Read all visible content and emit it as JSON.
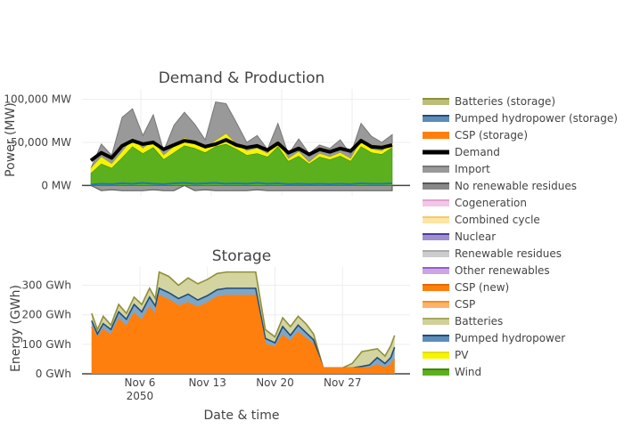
{
  "chart_data": [
    {
      "type": "area",
      "title": "Demand & Production",
      "ylabel": "Power (MW)",
      "yticks": [
        "100,000 MW",
        "50,000 MW",
        "0 MW"
      ],
      "ytick_values": [
        100000,
        50000,
        0
      ],
      "ylim": [
        -12000,
        112000
      ],
      "series": [
        {
          "name": "Demand",
          "type": "line",
          "color": "#000000",
          "x": [
            0,
            1,
            2,
            3,
            4,
            5,
            6,
            7,
            8,
            9,
            10,
            11,
            12,
            13,
            14,
            15,
            16,
            17,
            18,
            19,
            20,
            21,
            22,
            23,
            24,
            25,
            26,
            27,
            28,
            29
          ],
          "values": [
            29000,
            38000,
            32000,
            46000,
            52000,
            48000,
            50000,
            42000,
            47000,
            52000,
            50000,
            45000,
            48000,
            53000,
            47000,
            44000,
            46000,
            41000,
            49000,
            38000,
            43000,
            36000,
            42000,
            39000,
            43000,
            40000,
            52000,
            45000,
            44000,
            47000
          ]
        },
        {
          "name": "Wind",
          "type": "area",
          "color": "#5cb01e",
          "values": [
            14000,
            25000,
            20000,
            32000,
            45000,
            37000,
            44000,
            30000,
            38000,
            46000,
            43000,
            38000,
            45000,
            48000,
            42000,
            35000,
            37000,
            33000,
            45000,
            28000,
            34000,
            25000,
            33000,
            30000,
            34000,
            28000,
            45000,
            38000,
            36000,
            44000
          ]
        },
        {
          "name": "PV",
          "type": "area",
          "color": "#f5f500",
          "values": [
            6000,
            8000,
            5000,
            7000,
            9000,
            6000,
            8000,
            5000,
            7000,
            9000,
            8000,
            5000,
            7000,
            12000,
            6000,
            5000,
            6000,
            4000,
            7000,
            3000,
            5000,
            2000,
            4000,
            3000,
            4000,
            3000,
            7000,
            4000,
            4000,
            5000
          ]
        },
        {
          "name": "Import",
          "type": "area",
          "color": "#999999",
          "values": [
            0,
            15000,
            10000,
            40000,
            35000,
            15000,
            30000,
            5000,
            25000,
            30000,
            20000,
            10000,
            45000,
            35000,
            25000,
            10000,
            15000,
            5000,
            20000,
            5000,
            15000,
            10000,
            10000,
            10000,
            15000,
            5000,
            20000,
            15000,
            10000,
            10000
          ]
        },
        {
          "name": "Pumped hydropower",
          "type": "line",
          "color": "#1f77b4",
          "values": [
            1000,
            2000,
            1500,
            2500,
            2000,
            3000,
            2000,
            1500,
            2500,
            3000,
            2000,
            2500,
            3000,
            2000,
            2500,
            2000,
            3000,
            2000,
            2500,
            1500,
            2000,
            1500,
            2000,
            1500,
            2000,
            1500,
            2500,
            2000,
            2000,
            2500
          ]
        },
        {
          "name": "No renewable residues",
          "type": "area",
          "color": "#888888",
          "values": [
            0,
            -6000,
            -5000,
            -6000,
            -6000,
            -6000,
            -5000,
            -6000,
            -6000,
            0,
            -6000,
            -5000,
            -6000,
            -6000,
            -6000,
            -6000,
            -5000,
            -6000,
            -6000,
            -6000,
            -6000,
            -6000,
            -6000,
            -6000,
            -6000,
            -6000,
            -6000,
            -6000,
            -6000,
            -6000
          ]
        }
      ]
    },
    {
      "type": "area",
      "title": "Storage",
      "ylabel": "Energy (GWh)",
      "xlabel": "Date & time",
      "yticks": [
        "300 GWh",
        "200 GWh",
        "100 GWh",
        "0 GWh"
      ],
      "ytick_values": [
        300,
        200,
        100,
        0
      ],
      "ylim": [
        0,
        362
      ],
      "xticks": [
        {
          "x": 6,
          "label": "Nov 6",
          "label2": "2050"
        },
        {
          "x": 13,
          "label": "Nov 13"
        },
        {
          "x": 20,
          "label": "Nov 20"
        },
        {
          "x": 27,
          "label": "Nov 27"
        }
      ],
      "xlim": [
        0,
        34
      ],
      "x": [
        1,
        1.6,
        2.2,
        3,
        3.8,
        4.6,
        5.4,
        6.2,
        7,
        7.6,
        8,
        9,
        10,
        11,
        12,
        13,
        14,
        15,
        16,
        17,
        18,
        19,
        20,
        20.8,
        21.6,
        22.4,
        23.2,
        24,
        25,
        26,
        27,
        28,
        29,
        29.8,
        30.6,
        31.4,
        32,
        32.4
      ],
      "series": [
        {
          "name": "CSP (new)",
          "color": "#ff7f0e",
          "values": [
            160,
            120,
            150,
            130,
            185,
            160,
            205,
            180,
            225,
            200,
            265,
            250,
            230,
            240,
            225,
            240,
            260,
            265,
            265,
            265,
            265,
            100,
            90,
            130,
            110,
            140,
            120,
            100,
            20,
            20,
            20,
            20,
            20,
            20,
            30,
            20,
            30,
            50
          ]
        },
        {
          "name": "Pumped hydropower",
          "color": "#5b8db8",
          "values": [
            180,
            135,
            170,
            150,
            210,
            185,
            235,
            210,
            260,
            230,
            290,
            275,
            255,
            270,
            250,
            265,
            285,
            290,
            290,
            290,
            290,
            120,
            105,
            160,
            130,
            165,
            140,
            115,
            20,
            20,
            20,
            20,
            25,
            30,
            55,
            35,
            55,
            90
          ]
        },
        {
          "name": "Batteries",
          "color": "#bdbd7a",
          "values": [
            205,
            150,
            195,
            165,
            235,
            205,
            260,
            235,
            290,
            255,
            345,
            330,
            300,
            325,
            305,
            320,
            340,
            345,
            345,
            345,
            345,
            150,
            125,
            190,
            160,
            195,
            170,
            135,
            20,
            20,
            20,
            35,
            75,
            80,
            85,
            60,
            95,
            130
          ]
        }
      ]
    }
  ],
  "legend": [
    {
      "name": "Batteries (storage)",
      "color": "#bdbd7a",
      "border": "#8f8f3a",
      "kind": "area"
    },
    {
      "name": "Pumped hydropower (storage)",
      "color": "#5b8db8",
      "border": "#1f4e79",
      "kind": "area"
    },
    {
      "name": "CSP (storage)",
      "color": "#ff7f0e",
      "border": "#ff7f0e",
      "kind": "area"
    },
    {
      "name": "Demand",
      "color": "#000000",
      "border": "#000000",
      "kind": "line"
    },
    {
      "name": "Import",
      "color": "#999999",
      "border": "#777777",
      "kind": "area"
    },
    {
      "name": "No renewable residues",
      "color": "#888888",
      "border": "#555555",
      "kind": "area"
    },
    {
      "name": "Cogeneration",
      "color": "#f3c6e6",
      "border": "#e0a0d0",
      "kind": "area"
    },
    {
      "name": "Combined cycle",
      "color": "#fde5a6",
      "border": "#f5c870",
      "kind": "area"
    },
    {
      "name": "Nuclear",
      "color": "#9e8fd0",
      "border": "#4b3a9a",
      "kind": "area"
    },
    {
      "name": "Renewable residues",
      "color": "#cccccc",
      "border": "#aaaaaa",
      "kind": "area"
    },
    {
      "name": "Other renewables",
      "color": "#c9a6e4",
      "border": "#9a5cc8",
      "kind": "area"
    },
    {
      "name": "CSP (new)",
      "color": "#ff7f0e",
      "border": "#e06a00",
      "kind": "area"
    },
    {
      "name": "CSP",
      "color": "#fbb36a",
      "border": "#f59020",
      "kind": "area"
    },
    {
      "name": "Batteries",
      "color": "#d0d09a",
      "border": "#a8a860",
      "kind": "area"
    },
    {
      "name": "Pumped hydropower",
      "color": "#5b8db8",
      "border": "#1f4e79",
      "kind": "area"
    },
    {
      "name": "PV",
      "color": "#f5f500",
      "border": "#e0e000",
      "kind": "area"
    },
    {
      "name": "Wind",
      "color": "#5cb01e",
      "border": "#3d8a0a",
      "kind": "area"
    }
  ]
}
